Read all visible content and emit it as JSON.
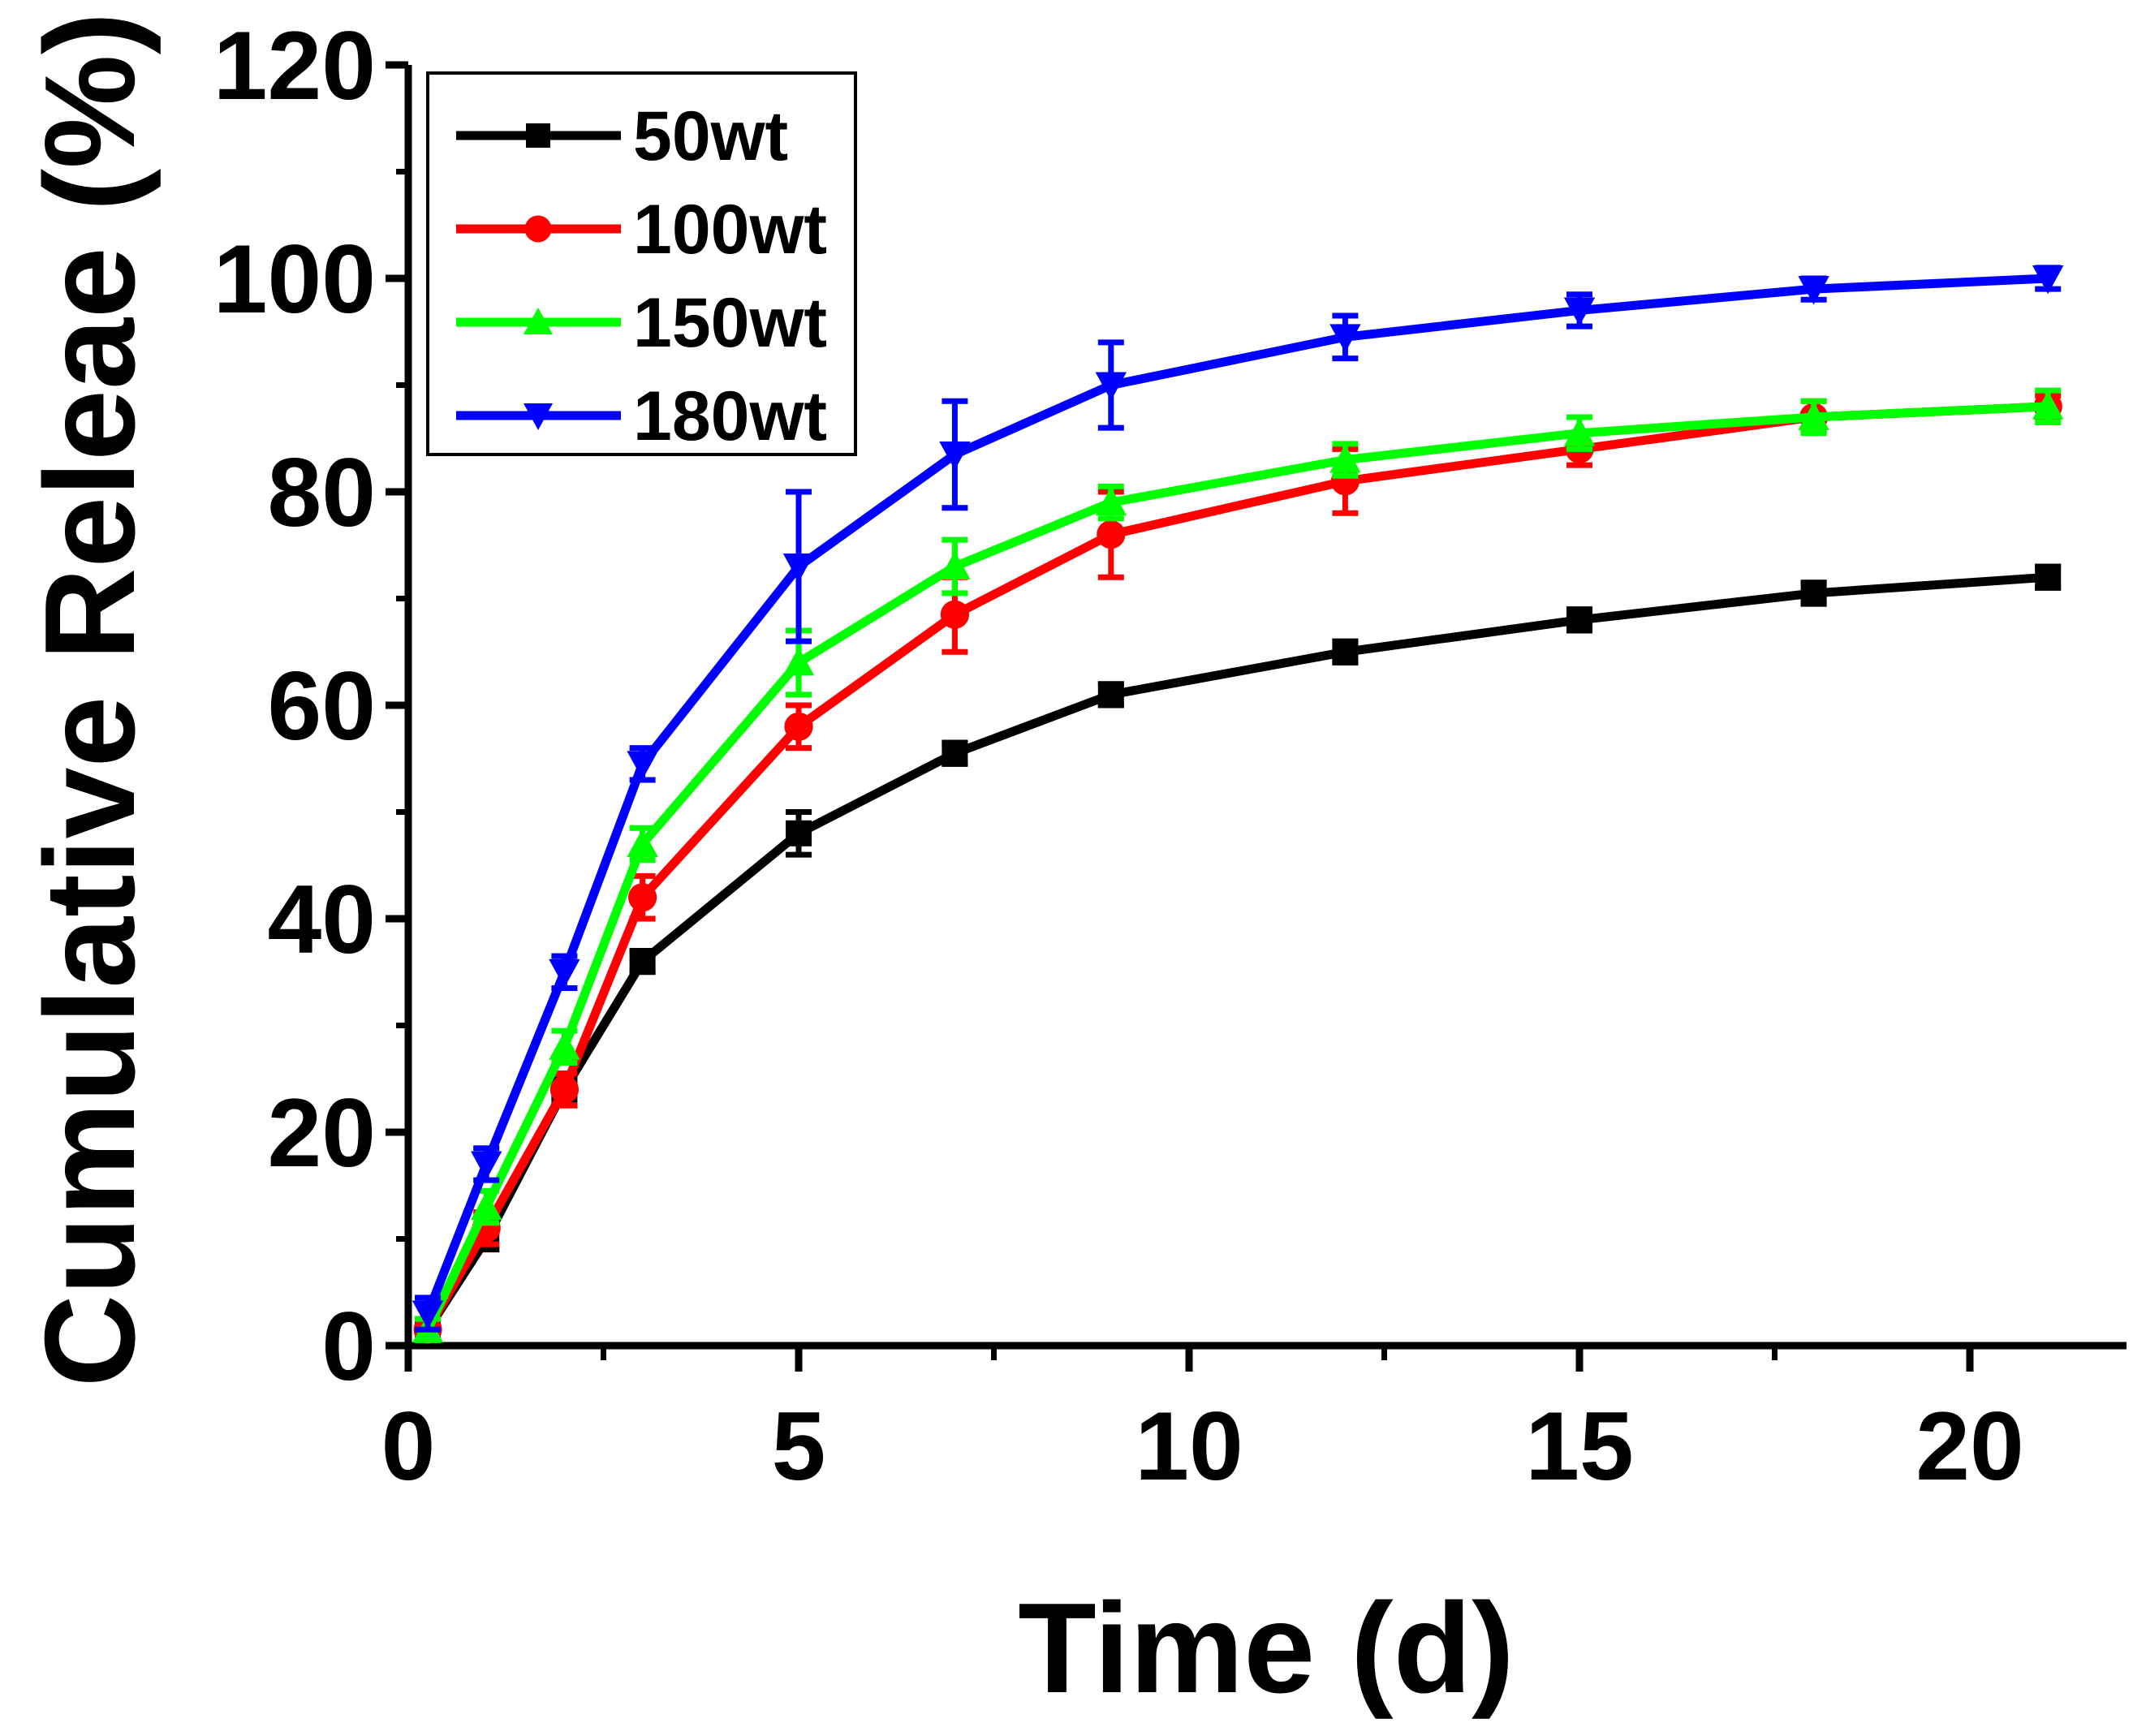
{
  "chart_data": {
    "type": "line",
    "title": "",
    "xlabel": "Time (d)",
    "ylabel": "Cumulative Releae (%)",
    "xlim": [
      0,
      22
    ],
    "ylim": [
      0,
      120
    ],
    "xticks": [
      0,
      5,
      10,
      15,
      20
    ],
    "yticks": [
      0,
      20,
      40,
      60,
      80,
      100,
      120
    ],
    "grid": false,
    "legend_position": "top-left",
    "x": [
      0.25,
      1,
      2,
      3,
      5,
      7,
      9,
      12,
      15,
      18,
      21
    ],
    "series": [
      {
        "name": "50wt",
        "color": "#000000",
        "marker": "square",
        "values": [
          1.5,
          10,
          24,
          36,
          48,
          55.5,
          61,
          65,
          68,
          70.5,
          72
        ],
        "errors": [
          1.0,
          1.0,
          1.5,
          1.0,
          2.0,
          1.0,
          1.0,
          1.0,
          1.0,
          1.0,
          1.0
        ]
      },
      {
        "name": "100wt",
        "color": "#ff0000",
        "marker": "circle",
        "values": [
          1.5,
          11,
          24,
          42,
          58,
          68.5,
          76,
          81,
          84,
          87,
          88
        ],
        "errors": [
          1.0,
          1.5,
          1.5,
          2.0,
          2.0,
          3.5,
          4.0,
          3.0,
          1.5,
          1.5,
          1.0
        ]
      },
      {
        "name": "150wt",
        "color": "#00ff00",
        "marker": "triangle-up",
        "values": [
          1.5,
          13,
          28,
          47,
          64,
          73,
          79,
          83,
          85.5,
          87,
          88
        ],
        "errors": [
          1.0,
          1.5,
          1.5,
          1.5,
          3.0,
          2.5,
          1.5,
          1.5,
          1.5,
          1.5,
          1.5
        ]
      },
      {
        "name": "180wt",
        "color": "#0000ff",
        "marker": "triangle-down",
        "values": [
          3,
          17,
          35,
          54.5,
          73,
          83.5,
          90,
          94.5,
          97,
          99,
          100
        ],
        "errors": [
          1.5,
          1.5,
          1.5,
          1.5,
          7.0,
          5.0,
          4.0,
          2.0,
          1.5,
          1.0,
          1.0
        ]
      }
    ]
  }
}
